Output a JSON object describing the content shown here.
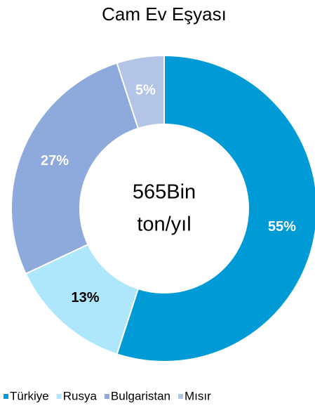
{
  "chart_data": {
    "type": "donut",
    "title": "Cam Ev Eşyası",
    "center_text": [
      "565Bin",
      "ton/yıl"
    ],
    "categories": [
      "Türkiye",
      "Rusya",
      "Bulgaristan",
      "Mısır"
    ],
    "values": [
      55,
      13,
      27,
      5
    ],
    "value_labels": [
      "55%",
      "13%",
      "27%",
      "5%"
    ],
    "colors": [
      "#009bd6",
      "#aee6fb",
      "#8ea9db",
      "#b4c4e7"
    ],
    "legend": "bottom"
  }
}
